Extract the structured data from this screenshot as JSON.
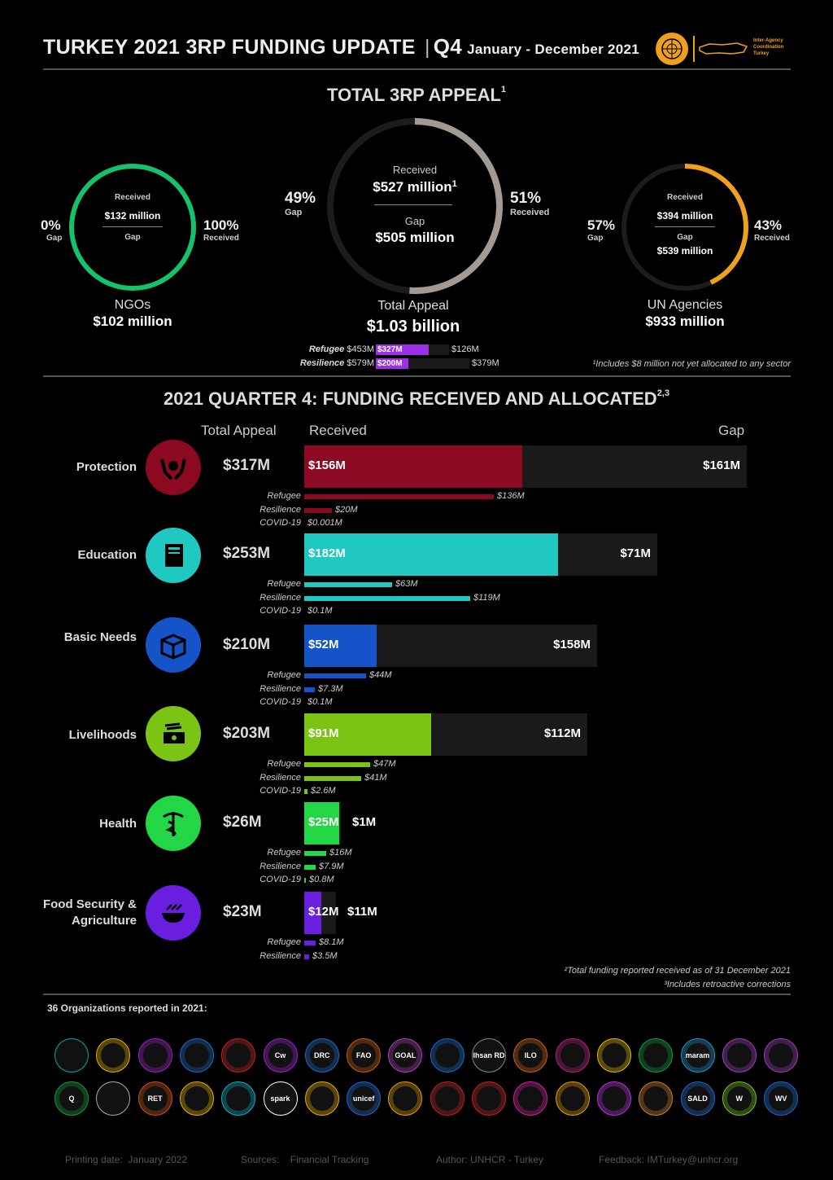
{
  "header": {
    "title": "TURKEY 2021 3RP FUNDING UPDATE",
    "quarter": "Q4",
    "period": "January - December 2021",
    "partner_logo_text": "Inter-Agency Coordination Turkey"
  },
  "total_appeal": {
    "heading": "TOTAL 3RP APPEAL",
    "heading_sup": "1",
    "center": {
      "received_label": "Received",
      "received_value": "$527 million",
      "received_sup": "1",
      "gap_label": "Gap",
      "gap_value": "$505 million",
      "gap_pct": "49%",
      "gap_pct_label": "Gap",
      "received_pct": "51%",
      "received_pct_label": "Received",
      "name": "Total Appeal",
      "total": "$1.03 billion",
      "received_fraction": 0.51
    },
    "ngos": {
      "received_label": "Received",
      "received_value": "$132 million",
      "gap_label": "Gap",
      "gap_pct": "0%",
      "gap_pct_label": "Gap",
      "received_pct": "100%",
      "received_pct_label": "Received",
      "name": "NGOs",
      "total": "$102 million",
      "received_fraction": 1.0
    },
    "un": {
      "received_label": "Received",
      "received_value": "$394 million",
      "gap_label": "Gap",
      "gap_value": "$539 million",
      "gap_pct": "57%",
      "gap_pct_label": "Gap",
      "received_pct": "43%",
      "received_pct_label": "Received",
      "name": "UN Agencies",
      "total": "$933 million",
      "received_fraction": 0.43
    },
    "components": [
      {
        "label": "Refugee",
        "total": "$453M",
        "received": "$327M",
        "gap": "$126M",
        "received_fraction": 0.72
      },
      {
        "label": "Resilience",
        "total": "$579M",
        "received": "$200M",
        "gap": "$379M",
        "received_fraction": 0.35
      }
    ],
    "footnote": "¹Includes $8 million not yet allocated to any sector"
  },
  "quarter": {
    "heading": "2021 QUARTER 4: FUNDING RECEIVED AND ALLOCATED",
    "heading_sup": "2,3",
    "col_total": "Total Appeal",
    "col_received": "Received",
    "col_gap": "Gap",
    "sectors": [
      {
        "name": "Protection",
        "appeal": "$317M",
        "received": "$156M",
        "gap": "$161M",
        "appeal_m": 317,
        "received_m": 156,
        "color": "#8b0a21",
        "subs": [
          {
            "label": "Refugee",
            "value": "$136M",
            "m": 136
          },
          {
            "label": "Resilience",
            "value": "$20M",
            "m": 20
          },
          {
            "label": "COVID-19",
            "value": "$0.001M",
            "m": 0
          }
        ]
      },
      {
        "name": "Education",
        "appeal": "$253M",
        "received": "$182M",
        "gap": "$71M",
        "appeal_m": 253,
        "received_m": 182,
        "color": "#1fc8c0",
        "subs": [
          {
            "label": "Refugee",
            "value": "$63M",
            "m": 63
          },
          {
            "label": "Resilience",
            "value": "$119M",
            "m": 119
          },
          {
            "label": "COVID-19",
            "value": "$0.1M",
            "m": 0
          }
        ]
      },
      {
        "name": "Basic Needs",
        "appeal": "$210M",
        "received": "$52M",
        "gap": "$158M",
        "appeal_m": 210,
        "received_m": 52,
        "color": "#1554c8",
        "subs": [
          {
            "label": "Refugee",
            "value": "$44M",
            "m": 44
          },
          {
            "label": "Resilience",
            "value": "$7.3M",
            "m": 7.3
          },
          {
            "label": "COVID-19",
            "value": "$0.1M",
            "m": 0
          }
        ]
      },
      {
        "name": "Livelihoods",
        "appeal": "$203M",
        "received": "$91M",
        "gap": "$112M",
        "appeal_m": 203,
        "received_m": 91,
        "color": "#7cc414",
        "subs": [
          {
            "label": "Refugee",
            "value": "$47M",
            "m": 47
          },
          {
            "label": "Resilience",
            "value": "$41M",
            "m": 41
          },
          {
            "label": "COVID-19",
            "value": "$2.6M",
            "m": 2.6
          }
        ]
      },
      {
        "name": "Health",
        "appeal": "$26M",
        "received": "$25M",
        "gap": "$1M",
        "appeal_m": 26,
        "received_m": 25,
        "color": "#22d645",
        "subs": [
          {
            "label": "Refugee",
            "value": "$16M",
            "m": 16
          },
          {
            "label": "Resilience",
            "value": "$7.9M",
            "m": 7.9
          },
          {
            "label": "COVID-19",
            "value": "$0.8M",
            "m": 0.8
          }
        ]
      },
      {
        "name": "Food Security & Agriculture",
        "appeal": "$23M",
        "received": "$12M",
        "gap": "$11M",
        "appeal_m": 23,
        "received_m": 12,
        "color": "#6a1ee0",
        "subs": [
          {
            "label": "Refugee",
            "value": "$8.1M",
            "m": 8.1
          },
          {
            "label": "Resilience",
            "value": "$3.5M",
            "m": 3.5
          }
        ]
      }
    ],
    "footnote2": "²Total funding reported received as of 31 December 2021",
    "footnote3": "³Includes retroactive corrections"
  },
  "organizations": {
    "heading": "36 Organizations reported in 2021:",
    "row1": [
      "",
      "",
      "",
      "",
      "",
      "Cw",
      "DRC",
      "FAO",
      "GOAL",
      "",
      "Ihsan RD",
      "ILO",
      "",
      "",
      "",
      "maram",
      "",
      ""
    ],
    "row2": [
      "Q",
      "",
      "RET",
      "",
      "",
      "spark",
      "",
      "unicef",
      "",
      "",
      "",
      "",
      "",
      "",
      "",
      "SALD",
      "W",
      "WV"
    ]
  },
  "footer": {
    "printing_label": "Printing date:",
    "printing_value": "January 2022",
    "sources_label": "Sources:",
    "sources_value": "Financial Tracking",
    "author": "Author: UNHCR - Turkey",
    "feedback": "Feedback: IMTurkey@unhcr.org"
  },
  "colors": {
    "ngo_ring": "#13c26b",
    "total_ring": "#a39a94",
    "un_ring": "#f0a01c",
    "refugee_bar": "#9b30e8"
  }
}
